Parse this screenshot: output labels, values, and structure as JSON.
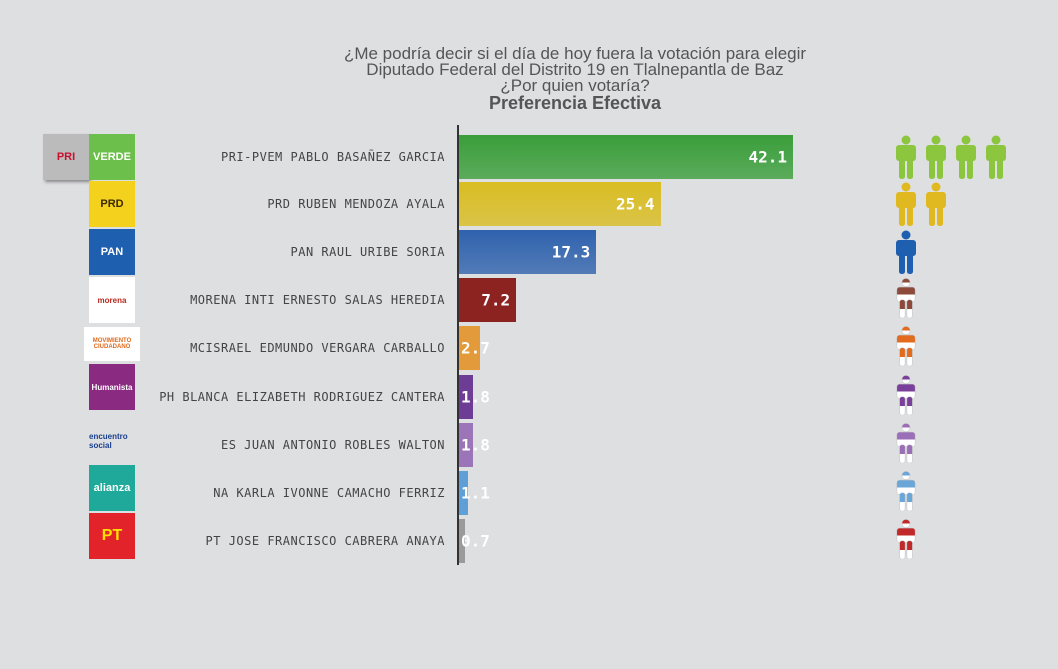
{
  "chart_data": {
    "type": "bar",
    "orientation": "horizontal",
    "title": [
      "¿Me podría decir si el día de hoy fuera la votación para elegir",
      "Diputado Federal del Distrito 19 en Tlalnepantla de Baz",
      "¿Por quien votaría?"
    ],
    "subtitle": "Preferencia Efectiva",
    "categories": [
      "PRI-PVEM PABLO BASAÑEZ GARCIA",
      "PRD RUBEN MENDOZA AYALA",
      "PAN RAUL URIBE SORIA",
      "MORENA INTI ERNESTO SALAS HEREDIA",
      "MCISRAEL EDMUNDO VERGARA CARBALLO",
      "PH BLANCA ELIZABETH RODRIGUEZ CANTERA",
      "ES JUAN ANTONIO ROBLES WALTON",
      "NA KARLA IVONNE CAMACHO FERRIZ",
      "PT JOSE FRANCISCO CABRERA ANAYA"
    ],
    "values": [
      42.1,
      25.4,
      17.3,
      7.2,
      2.7,
      1.8,
      1.8,
      1.1,
      0.7
    ],
    "labels": [
      "42.1",
      "25.4",
      "17.3",
      "7.2",
      "2.7",
      "1.8",
      "1.8",
      "1.1",
      "0.7"
    ],
    "colors": [
      "#3a9e3a",
      "#d9bd22",
      "#2f62ad",
      "#8c2320",
      "#e39a3a",
      "#6d3d96",
      "#9c75b9",
      "#5f9fd8",
      "#9a9a9a"
    ],
    "figure_colors": [
      "#8cc63f",
      "#e0b820",
      "#1f5fb0",
      "#8d4a3a",
      "#e26b1e",
      "#7a3f9a",
      "#9a6fb8",
      "#6aa6d8",
      "#c0282a"
    ],
    "figure_counts": [
      4,
      2,
      1,
      0.5,
      0.5,
      0.5,
      0.5,
      0.5,
      0.5
    ],
    "xlim": [
      0,
      45
    ]
  },
  "logos": [
    {
      "text": "PRI",
      "bg": "#bbbbbb",
      "fg": "#c8102e"
    },
    {
      "text": "VERDE",
      "bg": "#6cbf4a",
      "fg": "#fff"
    },
    {
      "text": "PRD",
      "bg": "#f4d11c",
      "fg": "#3a2a00"
    },
    {
      "text": "PAN",
      "bg": "#1f5fb0",
      "fg": "#fff"
    },
    {
      "text": "morena",
      "bg": "#ffffff",
      "fg": "#b5281f"
    },
    {
      "text": "MOVIMIENTO CIUDADANO",
      "bg": "#ffffff",
      "fg": "#e26b1e"
    },
    {
      "text": "Humanista",
      "bg": "#8a2a80",
      "fg": "#fff"
    },
    {
      "text": "encuentro social",
      "bg": "#dedfe1",
      "fg": "#1a3f8f"
    },
    {
      "text": "alianza",
      "bg": "#1ea99a",
      "fg": "#fff"
    },
    {
      "text": "PT",
      "bg": "#e3232a",
      "fg": "#ffe000"
    }
  ]
}
